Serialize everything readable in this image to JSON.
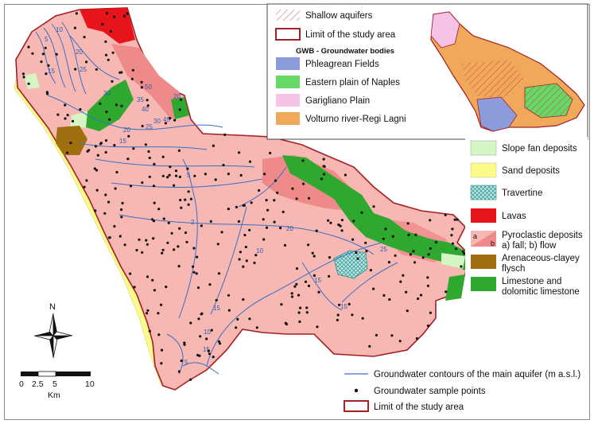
{
  "colors": {
    "pyroclastic_fall": "#f7b7b3",
    "pyroclastic_flow": "#ef8a8a",
    "slope_fan": "#d6f5c5",
    "sand": "#fbfb8a",
    "travertine": "#bde8e2",
    "lavas": "#e8141c",
    "flysch": "#a07010",
    "limestone": "#2ea82e",
    "phlegrean": "#8c9bdc",
    "eastern_plain": "#66d866",
    "garigliano": "#f6c2e6",
    "volturno": "#f0a85a",
    "study_limit": "#a31f24",
    "contours": "#3a6fc4"
  },
  "legend_top": {
    "shallow_aquifers": "Shallow aquifers",
    "limit_study_area": "Limit of the study area",
    "gwb_title": "GWB - Groundwater bodies",
    "bodies": [
      "Phleagrean Fields",
      "Eastern plain of Naples",
      "Garigliano Plain",
      "Volturno river-Regi Lagni"
    ]
  },
  "legend_right": {
    "slope_fan": "Slope fan deposits",
    "sand": "Sand deposits",
    "travertine": "Travertine",
    "lavas": "Lavas",
    "pyroclastic_line1": "Pyroclastic deposits",
    "pyroclastic_line2": "a) fall; b) flow",
    "pyro_a": "a",
    "pyro_b": "b",
    "flysch_line1": "Arenaceous-clayey",
    "flysch_line2": "flysch",
    "limestone_line1": "Limestone and",
    "limestone_line2": "dolomitic limestone"
  },
  "legend_bottom": {
    "contours": "Groundwater contours of the main aquifer (m a.s.l.)",
    "samples": "Groundwater sample points",
    "limit": "Limit of the study area"
  },
  "compass": {
    "north": "N"
  },
  "scale_bar": {
    "ticks": [
      "0",
      "2.5",
      "5",
      "10"
    ],
    "unit": "Km"
  },
  "contour_labels": [
    "5",
    "10",
    "15",
    "20",
    "25",
    "30",
    "35",
    "40",
    "45",
    "50",
    "15",
    "20",
    "25",
    "30",
    "2",
    "5",
    "10",
    "15",
    "20",
    "25",
    "15",
    "10",
    "5",
    "15",
    "20",
    "15"
  ]
}
